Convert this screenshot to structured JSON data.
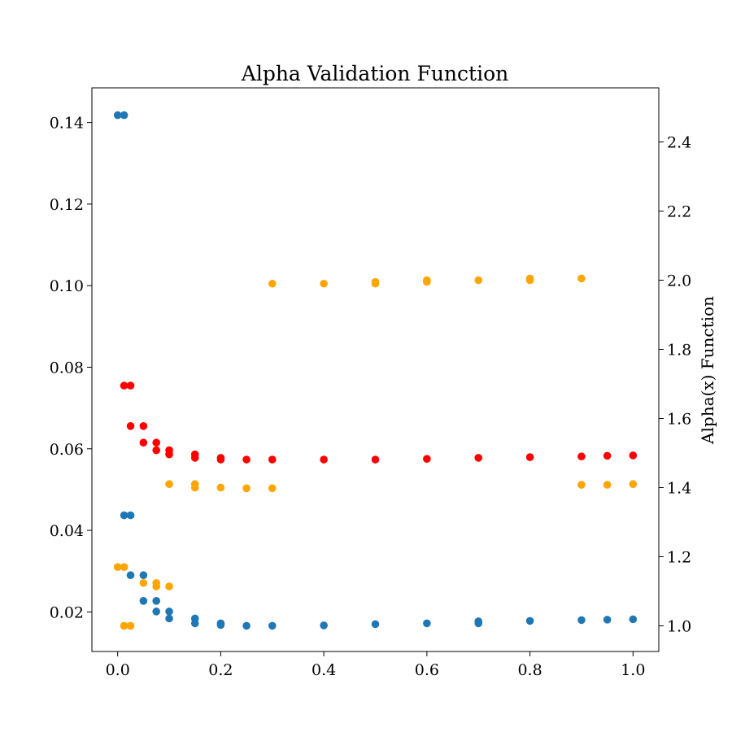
{
  "chart_data": {
    "type": "scatter",
    "title": "Alpha Validation Function",
    "xlabel": "",
    "ylabel": "",
    "y2label": "Alpha(x) Function",
    "xlim": [
      -0.05,
      1.05
    ],
    "ylim": [
      0.0103,
      0.1485
    ],
    "y2lim": [
      0.9257,
      2.5566
    ],
    "xticks": [
      "0.0",
      "0.2",
      "0.4",
      "0.6",
      "0.8",
      "1.0"
    ],
    "xtick_values": [
      0.0,
      0.2,
      0.4,
      0.6,
      0.8,
      1.0
    ],
    "yticks": [
      "0.02",
      "0.04",
      "0.06",
      "0.08",
      "0.10",
      "0.12",
      "0.14"
    ],
    "ytick_values": [
      0.02,
      0.04,
      0.06,
      0.08,
      0.1,
      0.12,
      0.14
    ],
    "y2ticks": [
      "1.0",
      "1.2",
      "1.4",
      "1.6",
      "1.8",
      "2.0",
      "2.2",
      "2.4"
    ],
    "y2tick_values": [
      1.0,
      1.2,
      1.4,
      1.6,
      1.8,
      2.0,
      2.2,
      2.4
    ],
    "grid": false,
    "series": [
      {
        "axis": "left",
        "color": "#1f77b4",
        "points": [
          [
            0.0,
            0.1418
          ],
          [
            0.0125,
            0.1418
          ],
          [
            0.0125,
            0.0437
          ],
          [
            0.025,
            0.0437
          ],
          [
            0.025,
            0.029
          ],
          [
            0.05,
            0.029
          ],
          [
            0.05,
            0.0227
          ],
          [
            0.075,
            0.0227
          ],
          [
            0.075,
            0.0201
          ],
          [
            0.1,
            0.0201
          ],
          [
            0.1,
            0.0184
          ],
          [
            0.15,
            0.0184
          ],
          [
            0.15,
            0.0172
          ],
          [
            0.2,
            0.0172
          ],
          [
            0.2,
            0.0168
          ],
          [
            0.25,
            0.0166
          ],
          [
            0.3,
            0.0166
          ],
          [
            0.4,
            0.0167
          ],
          [
            0.5,
            0.017
          ],
          [
            0.6,
            0.0172
          ],
          [
            0.7,
            0.0172
          ],
          [
            0.7,
            0.0177
          ],
          [
            0.8,
            0.0178
          ],
          [
            0.9,
            0.018
          ],
          [
            0.95,
            0.0181
          ],
          [
            1.0,
            0.0182
          ]
        ]
      },
      {
        "axis": "right",
        "color": "#ffa500",
        "points": [
          [
            0.0,
            1.17
          ],
          [
            0.0125,
            1.17
          ],
          [
            0.0125,
            1.0
          ],
          [
            0.025,
            1.0
          ],
          [
            0.05,
            1.124
          ],
          [
            0.075,
            1.124
          ],
          [
            0.075,
            1.114
          ],
          [
            0.1,
            1.114
          ],
          [
            0.1,
            1.41
          ],
          [
            0.15,
            1.41
          ],
          [
            0.15,
            1.4
          ],
          [
            0.2,
            1.4
          ],
          [
            0.25,
            1.398
          ],
          [
            0.3,
            1.398
          ],
          [
            0.3,
            1.99
          ],
          [
            0.4,
            1.99
          ],
          [
            0.5,
            1.99
          ],
          [
            0.5,
            1.995
          ],
          [
            0.6,
            1.995
          ],
          [
            0.6,
            2.0
          ],
          [
            0.7,
            2.0
          ],
          [
            0.8,
            2.0
          ],
          [
            0.8,
            2.005
          ],
          [
            0.9,
            2.005
          ],
          [
            0.9,
            1.408
          ],
          [
            0.95,
            1.408
          ],
          [
            1.0,
            1.41
          ]
        ]
      },
      {
        "axis": "right",
        "color": "#ff0000",
        "points": [
          [
            0.0125,
            1.695
          ],
          [
            0.025,
            1.695
          ],
          [
            0.025,
            1.578
          ],
          [
            0.05,
            1.578
          ],
          [
            0.05,
            1.53
          ],
          [
            0.075,
            1.53
          ],
          [
            0.075,
            1.508
          ],
          [
            0.1,
            1.508
          ],
          [
            0.1,
            1.496
          ],
          [
            0.15,
            1.496
          ],
          [
            0.15,
            1.486
          ],
          [
            0.2,
            1.486
          ],
          [
            0.2,
            1.481
          ],
          [
            0.25,
            1.481
          ],
          [
            0.3,
            1.481
          ],
          [
            0.4,
            1.481
          ],
          [
            0.5,
            1.481
          ],
          [
            0.6,
            1.483
          ],
          [
            0.7,
            1.486
          ],
          [
            0.8,
            1.488
          ],
          [
            0.9,
            1.49
          ],
          [
            0.95,
            1.492
          ],
          [
            1.0,
            1.493
          ]
        ]
      }
    ]
  }
}
